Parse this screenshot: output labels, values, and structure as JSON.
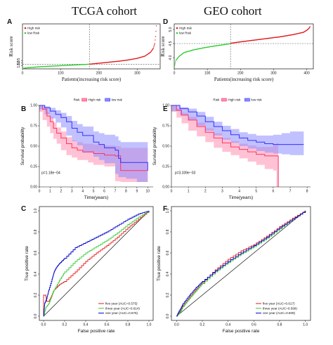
{
  "headers": {
    "left": "TCGA cohort",
    "right": "GEO cohort"
  },
  "colors": {
    "high_risk": "#e31a1c",
    "low_risk": "#33cc33",
    "km_high": "#ff3366",
    "km_high_band": "#ff8fb1",
    "km_low": "#3333ff",
    "km_low_band": "#8e8eff",
    "roc_five": "#e31a1c",
    "roc_three": "#33cc33",
    "roc_one": "#0000cc",
    "diag": "#111111"
  },
  "chart_data": [
    {
      "panel": "A",
      "type": "scatter",
      "xlabel": "Patients(increasing risk score)",
      "ylabel": "Risk score",
      "xticks": [
        "0",
        "100",
        "200",
        "300"
      ],
      "yticks": [
        "1.5",
        "2.0",
        "2.5"
      ],
      "xlim": [
        0,
        360
      ],
      "ylim": [
        0.8,
        10
      ],
      "legend": [
        "High risk",
        "low Risk"
      ],
      "legend_position": "top-left",
      "n_patients": 350,
      "cutoff_index": 175,
      "cutoff_value": 1.75,
      "series": [
        {
          "name": "low Risk",
          "x": [
            1,
            10,
            25,
            50,
            75,
            100,
            125,
            150,
            175
          ],
          "values": [
            0.9,
            1.0,
            1.1,
            1.25,
            1.35,
            1.45,
            1.55,
            1.65,
            1.75
          ]
        },
        {
          "name": "High risk",
          "x": [
            176,
            200,
            225,
            250,
            275,
            300,
            320,
            335,
            342,
            346,
            348,
            350
          ],
          "values": [
            1.76,
            1.95,
            2.15,
            2.35,
            2.6,
            2.95,
            3.4,
            4.2,
            5.0,
            6.0,
            7.4,
            9.6
          ]
        }
      ]
    },
    {
      "panel": "D",
      "type": "scatter",
      "xlabel": "Patients(increasing risk score)",
      "ylabel": "Risk score",
      "xticks": [
        "0",
        "100",
        "200",
        "300",
        "400"
      ],
      "yticks": [
        "4.0",
        "4.5",
        "5.0"
      ],
      "xlim": [
        0,
        420
      ],
      "ylim": [
        3.6,
        5.2
      ],
      "legend": [
        "High risk",
        "low Risk"
      ],
      "legend_position": "top-left",
      "n_patients": 410,
      "cutoff_index": 170,
      "cutoff_value": 4.5,
      "series": [
        {
          "name": "low Risk",
          "x": [
            1,
            5,
            15,
            30,
            60,
            90,
            120,
            150,
            170
          ],
          "values": [
            3.7,
            3.9,
            4.05,
            4.18,
            4.28,
            4.35,
            4.41,
            4.46,
            4.5
          ]
        },
        {
          "name": "High risk",
          "x": [
            171,
            200,
            240,
            280,
            320,
            360,
            390,
            400,
            406,
            410
          ],
          "values": [
            4.51,
            4.56,
            4.62,
            4.68,
            4.74,
            4.82,
            4.9,
            4.97,
            5.03,
            5.1
          ]
        }
      ]
    },
    {
      "panel": "B",
      "type": "line",
      "xlabel": "Time(years)",
      "ylabel": "Survival probability",
      "xticks": [
        "0",
        "1",
        "2",
        "3",
        "4",
        "5",
        "6",
        "7",
        "8",
        "9",
        "10"
      ],
      "yticks": [
        "0.00",
        "0.25",
        "0.50",
        "0.75",
        "1.00"
      ],
      "xlim": [
        0,
        10.5
      ],
      "ylim": [
        0,
        1
      ],
      "legend_title": "Risk",
      "legend": [
        "High risk",
        "low risk"
      ],
      "legend_position": "top",
      "pvalue": "p=1.18e−04",
      "series": [
        {
          "name": "High risk",
          "x": [
            0,
            0.3,
            0.7,
            1.0,
            1.3,
            1.6,
            2.0,
            2.5,
            3.0,
            3.5,
            4.0,
            4.5,
            5.0,
            6.0,
            7.0,
            7.5,
            8.0,
            9.0,
            10.0
          ],
          "values": [
            1.0,
            0.95,
            0.87,
            0.8,
            0.72,
            0.66,
            0.6,
            0.53,
            0.48,
            0.45,
            0.43,
            0.43,
            0.41,
            0.39,
            0.38,
            0.2,
            0.2,
            0.2,
            0.2
          ],
          "lower": [
            1.0,
            0.92,
            0.82,
            0.74,
            0.66,
            0.59,
            0.53,
            0.45,
            0.39,
            0.36,
            0.33,
            0.33,
            0.3,
            0.27,
            0.25,
            0.07,
            0.06,
            0.06,
            0.06
          ],
          "upper": [
            1.0,
            0.98,
            0.92,
            0.86,
            0.79,
            0.73,
            0.68,
            0.61,
            0.57,
            0.55,
            0.53,
            0.53,
            0.52,
            0.51,
            0.5,
            0.48,
            0.48,
            0.48,
            0.48
          ]
        },
        {
          "name": "low risk",
          "x": [
            0,
            0.5,
            1.0,
            1.5,
            2.0,
            2.5,
            3.0,
            3.5,
            4.0,
            5.0,
            5.5,
            6.0,
            7.0,
            7.3,
            7.5,
            8.0,
            9.0,
            10.0
          ],
          "values": [
            1.0,
            0.97,
            0.93,
            0.89,
            0.85,
            0.8,
            0.72,
            0.67,
            0.63,
            0.55,
            0.52,
            0.48,
            0.45,
            0.35,
            0.3,
            0.3,
            0.3,
            0.2
          ],
          "lower": [
            1.0,
            0.95,
            0.89,
            0.84,
            0.79,
            0.73,
            0.63,
            0.56,
            0.51,
            0.42,
            0.37,
            0.33,
            0.29,
            0.16,
            0.12,
            0.12,
            0.1,
            0.06
          ],
          "upper": [
            1.0,
            0.99,
            0.97,
            0.94,
            0.91,
            0.87,
            0.81,
            0.77,
            0.74,
            0.68,
            0.66,
            0.64,
            0.62,
            0.57,
            0.55,
            0.55,
            0.55,
            0.55
          ]
        }
      ]
    },
    {
      "panel": "E",
      "type": "line",
      "xlabel": "Time(years)",
      "ylabel": "Survival probability",
      "xticks": [
        "0",
        "1",
        "2",
        "3",
        "4",
        "5",
        "6",
        "7",
        "8"
      ],
      "yticks": [
        "0.00",
        "0.25",
        "0.50",
        "0.75",
        "1.00"
      ],
      "xlim": [
        0,
        8.2
      ],
      "ylim": [
        0,
        1
      ],
      "legend_title": "Risk",
      "legend": [
        "High risk",
        "low risk"
      ],
      "legend_position": "top",
      "pvalue": "p=3.339e−03",
      "series": [
        {
          "name": "High risk",
          "x": [
            0,
            0.3,
            0.6,
            1.0,
            1.5,
            2.0,
            2.5,
            3.0,
            3.5,
            4.0,
            4.5,
            5.0,
            5.5,
            6.0,
            6.2,
            6.3
          ],
          "values": [
            1.0,
            0.94,
            0.88,
            0.82,
            0.74,
            0.67,
            0.6,
            0.54,
            0.49,
            0.46,
            0.43,
            0.4,
            0.38,
            0.38,
            0.38,
            0.0
          ],
          "lower": [
            1.0,
            0.92,
            0.85,
            0.78,
            0.69,
            0.62,
            0.55,
            0.48,
            0.43,
            0.39,
            0.35,
            0.31,
            0.27,
            0.22,
            0.2,
            0.0
          ],
          "upper": [
            1.0,
            0.96,
            0.91,
            0.86,
            0.79,
            0.72,
            0.66,
            0.6,
            0.56,
            0.53,
            0.51,
            0.49,
            0.49,
            0.52,
            0.54,
            0.54
          ]
        },
        {
          "name": "low risk",
          "x": [
            0,
            0.5,
            1.0,
            1.5,
            2.0,
            2.5,
            3.0,
            3.5,
            4.0,
            4.5,
            5.0,
            5.5,
            6.0,
            6.5,
            7.0,
            7.5,
            7.8
          ],
          "values": [
            1.0,
            0.96,
            0.92,
            0.87,
            0.8,
            0.74,
            0.69,
            0.64,
            0.6,
            0.57,
            0.55,
            0.53,
            0.52,
            0.52,
            0.52,
            0.52,
            0.52
          ],
          "lower": [
            1.0,
            0.93,
            0.88,
            0.82,
            0.75,
            0.69,
            0.63,
            0.58,
            0.54,
            0.5,
            0.47,
            0.44,
            0.42,
            0.41,
            0.4,
            0.39,
            0.39
          ],
          "upper": [
            1.0,
            0.98,
            0.96,
            0.92,
            0.86,
            0.8,
            0.75,
            0.71,
            0.67,
            0.65,
            0.63,
            0.63,
            0.64,
            0.66,
            0.68,
            0.68,
            0.68
          ]
        }
      ]
    },
    {
      "panel": "C",
      "type": "line",
      "xlabel": "False positive rate",
      "ylabel": "True positive rate",
      "xticks": [
        "0.0",
        "0.2",
        "0.4",
        "0.6",
        "0.8",
        "1.0"
      ],
      "yticks": [
        "0.0",
        "0.2",
        "0.4",
        "0.6",
        "0.8",
        "1.0"
      ],
      "xlim": [
        -0.04,
        1.04
      ],
      "ylim": [
        -0.04,
        1.04
      ],
      "legend": [
        "five year (AUC=0.575)",
        "three year (AUC=0.614)",
        "one year (AUC=0.676)"
      ],
      "legend_position": "bottom-right",
      "series": [
        {
          "name": "five year (AUC=0.575)",
          "x": [
            0,
            0.0,
            0.02,
            0.03,
            0.05,
            0.07,
            0.1,
            0.15,
            0.2,
            0.3,
            0.4,
            0.5,
            0.6,
            0.7,
            0.8,
            0.9,
            1.0
          ],
          "values": [
            0,
            0.2,
            0.2,
            0.14,
            0.14,
            0.18,
            0.25,
            0.3,
            0.33,
            0.42,
            0.52,
            0.6,
            0.67,
            0.75,
            0.84,
            0.92,
            1.0
          ]
        },
        {
          "name": "three year (AUC=0.614)",
          "x": [
            0,
            0.02,
            0.05,
            0.08,
            0.1,
            0.15,
            0.2,
            0.3,
            0.4,
            0.5,
            0.6,
            0.7,
            0.8,
            0.9,
            1.0
          ],
          "values": [
            0,
            0.08,
            0.12,
            0.2,
            0.25,
            0.34,
            0.42,
            0.52,
            0.6,
            0.66,
            0.72,
            0.79,
            0.87,
            0.94,
            1.0
          ]
        },
        {
          "name": "one year (AUC=0.676)",
          "x": [
            0,
            0.01,
            0.03,
            0.05,
            0.08,
            0.1,
            0.12,
            0.15,
            0.2,
            0.3,
            0.4,
            0.5,
            0.6,
            0.7,
            0.8,
            0.9,
            1.0
          ],
          "values": [
            0,
            0.12,
            0.17,
            0.25,
            0.35,
            0.42,
            0.46,
            0.5,
            0.55,
            0.65,
            0.7,
            0.75,
            0.8,
            0.86,
            0.92,
            0.97,
            1.0
          ]
        }
      ]
    },
    {
      "panel": "F",
      "type": "line",
      "xlabel": "False positive rate",
      "ylabel": "True positive rate",
      "xticks": [
        "0.0",
        "0.2",
        "0.4",
        "0.6",
        "0.8",
        "1.0"
      ],
      "yticks": [
        "0.0",
        "0.2",
        "0.4",
        "0.6",
        "0.8",
        "1.0"
      ],
      "xlim": [
        -0.04,
        1.04
      ],
      "ylim": [
        -0.04,
        1.04
      ],
      "legend": [
        "five year (AUC=0.617)",
        "three year (AUC=0.599)",
        "one year (AUC=0.609)"
      ],
      "legend_position": "bottom-right",
      "series": [
        {
          "name": "five year (AUC=0.617)",
          "x": [
            0,
            0.03,
            0.05,
            0.1,
            0.15,
            0.2,
            0.3,
            0.4,
            0.5,
            0.6,
            0.7,
            0.8,
            0.9,
            1.0
          ],
          "values": [
            0,
            0.05,
            0.1,
            0.18,
            0.25,
            0.32,
            0.44,
            0.54,
            0.62,
            0.68,
            0.76,
            0.85,
            0.93,
            1.0
          ]
        },
        {
          "name": "three year (AUC=0.599)",
          "x": [
            0,
            0.03,
            0.05,
            0.1,
            0.15,
            0.2,
            0.3,
            0.4,
            0.5,
            0.6,
            0.7,
            0.8,
            0.9,
            1.0
          ],
          "values": [
            0,
            0.04,
            0.09,
            0.17,
            0.24,
            0.31,
            0.42,
            0.51,
            0.59,
            0.66,
            0.74,
            0.83,
            0.92,
            1.0
          ]
        },
        {
          "name": "one year (AUC=0.609)",
          "x": [
            0,
            0.02,
            0.05,
            0.1,
            0.15,
            0.2,
            0.3,
            0.4,
            0.5,
            0.6,
            0.7,
            0.8,
            0.9,
            1.0
          ],
          "values": [
            0,
            0.05,
            0.12,
            0.2,
            0.27,
            0.33,
            0.43,
            0.52,
            0.6,
            0.67,
            0.75,
            0.84,
            0.92,
            1.0
          ]
        }
      ]
    }
  ]
}
